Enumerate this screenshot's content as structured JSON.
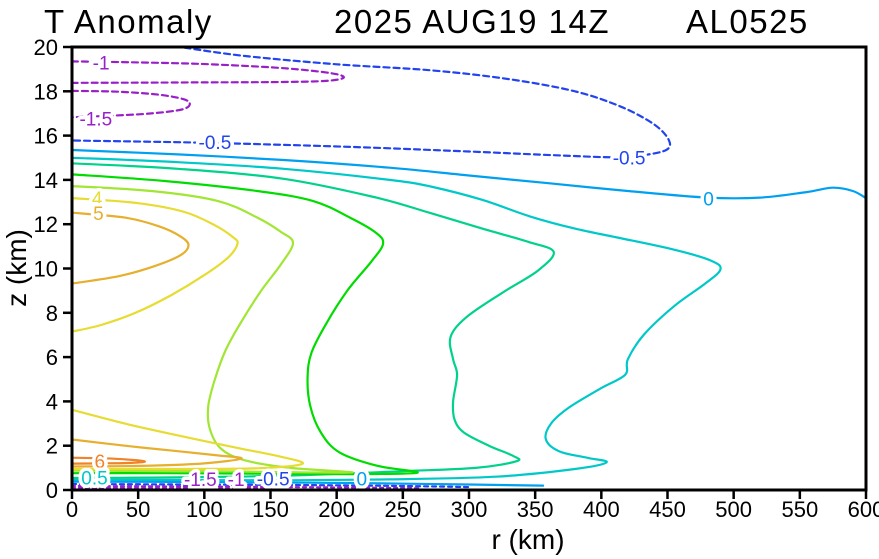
{
  "window": {
    "title_left": "T Anomaly",
    "title_datetime": "2025 AUG19 14Z",
    "title_storm": "AL0525"
  },
  "chart_data": {
    "type": "contour",
    "title": "T Anomaly   2025 AUG19 14Z  AL0525",
    "variable": "T Anomaly",
    "valid_time": "2025 AUG19 14Z",
    "storm_id": "AL0525",
    "xlabel": "r (km)",
    "ylabel": "z (km)",
    "xlim": [
      0,
      600
    ],
    "ylim": [
      0,
      20
    ],
    "xticks": [
      0,
      50,
      100,
      150,
      200,
      250,
      300,
      350,
      400,
      450,
      500,
      550,
      600
    ],
    "yticks": [
      0,
      2,
      4,
      6,
      8,
      10,
      12,
      14,
      16,
      18,
      20
    ],
    "grid": false,
    "legend": "none",
    "levels": [
      -1.5,
      -1,
      -0.5,
      0,
      0.5,
      1,
      2,
      3,
      4,
      5,
      6
    ],
    "level_colors": {
      "-1.5": "#9920C8",
      "-1": "#9920C8",
      "-0.5": "#2244EE",
      "0": "#00A0F0",
      "0.5": "#00C8C8",
      "1": "#00D28C",
      "2": "#00DC00",
      "3": "#A0E632",
      "4": "#E6DC32",
      "5": "#E6AF2D",
      "6": "#F08228"
    },
    "contours": [
      {
        "level": -1,
        "style": "dashed",
        "dash": "6 4",
        "color": "#9920C8",
        "points": [
          [
            0,
            19.35
          ],
          [
            45,
            19.31
          ],
          [
            95,
            19.24
          ],
          [
            145,
            19.1
          ],
          [
            178,
            18.95
          ],
          [
            200,
            18.77
          ],
          [
            205,
            18.6
          ],
          [
            192,
            18.47
          ],
          [
            158,
            18.42
          ],
          [
            90,
            18.4
          ],
          [
            40,
            18.39
          ],
          [
            0,
            18.38
          ]
        ]
      },
      {
        "level": -1.5,
        "style": "dashed",
        "dash": "6 4",
        "color": "#9920C8",
        "points": [
          [
            0,
            18.02
          ],
          [
            35,
            17.98
          ],
          [
            65,
            17.85
          ],
          [
            84,
            17.65
          ],
          [
            89,
            17.42
          ],
          [
            83,
            17.18
          ],
          [
            60,
            17.0
          ],
          [
            30,
            16.9
          ],
          [
            0,
            16.83
          ]
        ]
      },
      {
        "level": -0.5,
        "style": "dashed",
        "dash": "6 4",
        "color": "#2244EE",
        "points": [
          [
            85,
            19.97
          ],
          [
            130,
            19.6
          ],
          [
            200,
            19.22
          ],
          [
            271,
            18.95
          ],
          [
            330,
            18.55
          ],
          [
            380,
            18.0
          ],
          [
            415,
            17.3
          ],
          [
            440,
            16.5
          ],
          [
            451,
            15.8
          ],
          [
            449,
            15.35
          ],
          [
            430,
            15.1
          ],
          [
            410,
            15.02
          ],
          [
            370,
            15.1
          ],
          [
            300,
            15.28
          ],
          [
            230,
            15.45
          ],
          [
            150,
            15.6
          ],
          [
            80,
            15.7
          ],
          [
            0,
            15.78
          ]
        ]
      },
      {
        "level": 0,
        "style": "solid",
        "dash": null,
        "color": "#00A0F0",
        "points": [
          [
            0,
            15.35
          ],
          [
            80,
            15.15
          ],
          [
            160,
            14.9
          ],
          [
            240,
            14.55
          ],
          [
            300,
            14.2
          ],
          [
            360,
            13.85
          ],
          [
            420,
            13.5
          ],
          [
            480,
            13.2
          ],
          [
            520,
            13.2
          ],
          [
            555,
            13.45
          ],
          [
            575,
            13.65
          ],
          [
            590,
            13.5
          ],
          [
            600,
            13.18
          ]
        ]
      },
      {
        "level": 0.5,
        "style": "solid",
        "dash": null,
        "color": "#00C8C8",
        "points": [
          [
            0,
            15.0
          ],
          [
            80,
            14.8
          ],
          [
            160,
            14.5
          ],
          [
            240,
            14.0
          ],
          [
            271,
            13.7
          ],
          [
            310,
            13.1
          ],
          [
            346,
            12.35
          ],
          [
            380,
            11.8
          ],
          [
            412,
            11.4
          ],
          [
            455,
            10.85
          ],
          [
            483,
            10.35
          ],
          [
            490,
            9.95
          ],
          [
            478,
            9.3
          ],
          [
            455,
            8.3
          ],
          [
            432,
            7.0
          ],
          [
            420,
            5.9
          ],
          [
            418,
            5.2
          ],
          [
            400,
            4.6
          ],
          [
            375,
            3.7
          ],
          [
            362,
            3.0
          ],
          [
            358,
            2.3
          ],
          [
            368,
            1.75
          ],
          [
            390,
            1.45
          ],
          [
            404,
            1.25
          ],
          [
            380,
            0.95
          ],
          [
            320,
            0.6
          ],
          [
            240,
            0.48
          ],
          [
            160,
            0.44
          ],
          [
            80,
            0.45
          ],
          [
            0,
            0.47
          ]
        ]
      },
      {
        "level": 1,
        "style": "solid",
        "dash": null,
        "color": "#00D28C",
        "points": [
          [
            0,
            14.75
          ],
          [
            80,
            14.5
          ],
          [
            160,
            14.05
          ],
          [
            230,
            13.2
          ],
          [
            271,
            12.5
          ],
          [
            310,
            11.8
          ],
          [
            345,
            11.2
          ],
          [
            364,
            10.75
          ],
          [
            352,
            9.9
          ],
          [
            325,
            8.9
          ],
          [
            298,
            7.8
          ],
          [
            286,
            6.9
          ],
          [
            288,
            5.9
          ],
          [
            291,
            5.2
          ],
          [
            288,
            4.0
          ],
          [
            289,
            3.2
          ],
          [
            296,
            2.6
          ],
          [
            315,
            2.0
          ],
          [
            333,
            1.55
          ],
          [
            336,
            1.3
          ],
          [
            305,
            1.0
          ],
          [
            250,
            0.85
          ],
          [
            180,
            0.68
          ],
          [
            120,
            0.6
          ],
          [
            60,
            0.56
          ],
          [
            0,
            0.54
          ]
        ]
      },
      {
        "level": 2,
        "style": "solid",
        "dash": null,
        "color": "#00DC00",
        "points": [
          [
            0,
            14.25
          ],
          [
            70,
            13.95
          ],
          [
            140,
            13.5
          ],
          [
            182,
            13.05
          ],
          [
            210,
            12.3
          ],
          [
            230,
            11.6
          ],
          [
            235,
            11.1
          ],
          [
            226,
            10.3
          ],
          [
            208,
            9.0
          ],
          [
            192,
            7.5
          ],
          [
            181,
            6.2
          ],
          [
            178,
            5.1
          ],
          [
            180,
            3.8
          ],
          [
            188,
            2.6
          ],
          [
            202,
            1.7
          ],
          [
            230,
            1.1
          ],
          [
            261,
            0.78
          ],
          [
            210,
            0.72
          ],
          [
            140,
            0.74
          ],
          [
            70,
            0.76
          ],
          [
            0,
            0.76
          ]
        ]
      },
      {
        "level": 3,
        "style": "solid",
        "dash": null,
        "color": "#A0E632",
        "points": [
          [
            0,
            13.72
          ],
          [
            60,
            13.5
          ],
          [
            110,
            13.05
          ],
          [
            140,
            12.3
          ],
          [
            158,
            11.65
          ],
          [
            167,
            11.15
          ],
          [
            158,
            10.2
          ],
          [
            143,
            9.0
          ],
          [
            128,
            7.6
          ],
          [
            116,
            6.3
          ],
          [
            108,
            5.0
          ],
          [
            103,
            3.8
          ],
          [
            104,
            2.8
          ],
          [
            112,
            1.9
          ],
          [
            130,
            1.35
          ],
          [
            165,
            1.0
          ],
          [
            212,
            0.8
          ],
          [
            170,
            0.8
          ],
          [
            120,
            0.84
          ],
          [
            60,
            0.86
          ],
          [
            0,
            0.87
          ]
        ]
      },
      {
        "level": 4,
        "style": "solid",
        "dash": null,
        "color": "#E6DC32",
        "points": [
          [
            0,
            13.18
          ],
          [
            50,
            12.95
          ],
          [
            85,
            12.55
          ],
          [
            108,
            11.95
          ],
          [
            122,
            11.4
          ],
          [
            125,
            11.1
          ],
          [
            118,
            10.5
          ],
          [
            100,
            9.7
          ],
          [
            75,
            8.8
          ],
          [
            48,
            8.0
          ],
          [
            22,
            7.45
          ],
          [
            0,
            7.15
          ]
        ]
      },
      {
        "level": 4,
        "style": "solid",
        "dash": null,
        "color": "#E6DC32",
        "points": [
          [
            0,
            3.62
          ],
          [
            40,
            3.0
          ],
          [
            85,
            2.4
          ],
          [
            125,
            1.9
          ],
          [
            158,
            1.5
          ],
          [
            174,
            1.18
          ],
          [
            140,
            0.98
          ],
          [
            80,
            0.95
          ],
          [
            30,
            0.95
          ],
          [
            0,
            0.95
          ]
        ]
      },
      {
        "level": 5,
        "style": "solid",
        "dash": null,
        "color": "#E6AF2D",
        "points": [
          [
            0,
            12.52
          ],
          [
            40,
            12.3
          ],
          [
            66,
            11.9
          ],
          [
            82,
            11.45
          ],
          [
            88,
            11.05
          ],
          [
            82,
            10.6
          ],
          [
            62,
            10.1
          ],
          [
            35,
            9.65
          ],
          [
            0,
            9.32
          ]
        ]
      },
      {
        "level": 5,
        "style": "solid",
        "dash": null,
        "color": "#E6AF2D",
        "points": [
          [
            0,
            2.28
          ],
          [
            40,
            2.0
          ],
          [
            80,
            1.75
          ],
          [
            110,
            1.56
          ],
          [
            128,
            1.42
          ],
          [
            100,
            1.2
          ],
          [
            60,
            1.1
          ],
          [
            25,
            1.07
          ],
          [
            0,
            1.06
          ]
        ]
      },
      {
        "level": 6,
        "style": "solid",
        "dash": null,
        "color": "#F08228",
        "points": [
          [
            0,
            1.46
          ],
          [
            25,
            1.43
          ],
          [
            45,
            1.36
          ],
          [
            55,
            1.28
          ],
          [
            42,
            1.22
          ],
          [
            20,
            1.2
          ],
          [
            0,
            1.19
          ]
        ]
      },
      {
        "level": 0,
        "style": "solid",
        "dash": null,
        "color": "#00A0F0",
        "points": [
          [
            0,
            0.38
          ],
          [
            90,
            0.36
          ],
          [
            180,
            0.33
          ],
          [
            260,
            0.28
          ],
          [
            356,
            0.2
          ]
        ]
      },
      {
        "level": -0.5,
        "style": "dashed",
        "dash": "4 4",
        "color": "#2244EE",
        "points": [
          [
            0,
            0.27
          ],
          [
            90,
            0.25
          ],
          [
            180,
            0.22
          ],
          [
            250,
            0.18
          ],
          [
            300,
            0.13
          ]
        ]
      },
      {
        "level": -1,
        "style": "dashed",
        "dash": "3 4",
        "color": "#9920C8",
        "points": [
          [
            0,
            0.18
          ],
          [
            80,
            0.16
          ],
          [
            160,
            0.13
          ],
          [
            230,
            0.1
          ],
          [
            262,
            0.08
          ]
        ]
      },
      {
        "level": -1.5,
        "style": "dashed",
        "dash": "3 4",
        "color": "#9920C8",
        "points": [
          [
            0,
            0.09
          ],
          [
            60,
            0.08
          ],
          [
            120,
            0.06
          ],
          [
            155,
            0.05
          ]
        ]
      }
    ],
    "contour_labels": [
      {
        "text": "-1",
        "r": 22,
        "z": 19.3,
        "color": "#9920C8"
      },
      {
        "text": "-1.5",
        "r": 18,
        "z": 16.78,
        "color": "#9920C8"
      },
      {
        "text": "-0.5",
        "r": 108,
        "z": 15.72,
        "color": "#2244EE"
      },
      {
        "text": "-0.5",
        "r": 421,
        "z": 15.02,
        "color": "#2244EE"
      },
      {
        "text": "0",
        "r": 481,
        "z": 13.17,
        "color": "#00A0F0"
      },
      {
        "text": "4",
        "r": 19,
        "z": 13.18,
        "color": "#E6DC32"
      },
      {
        "text": "5",
        "r": 20,
        "z": 12.5,
        "color": "#E6AF2D"
      },
      {
        "text": "6",
        "r": 21,
        "z": 1.32,
        "color": "#F08228"
      },
      {
        "text": "0.5",
        "r": 17,
        "z": 0.56,
        "color": "#00C8C8"
      },
      {
        "text": "-1.5",
        "r": 97,
        "z": 0.5,
        "color": "#9920C8"
      },
      {
        "text": "-1",
        "r": 124,
        "z": 0.5,
        "color": "#9920C8"
      },
      {
        "text": "-0.5",
        "r": 152,
        "z": 0.52,
        "color": "#2244EE"
      },
      {
        "text": "0",
        "r": 219,
        "z": 0.52,
        "color": "#00A0F0"
      }
    ]
  }
}
